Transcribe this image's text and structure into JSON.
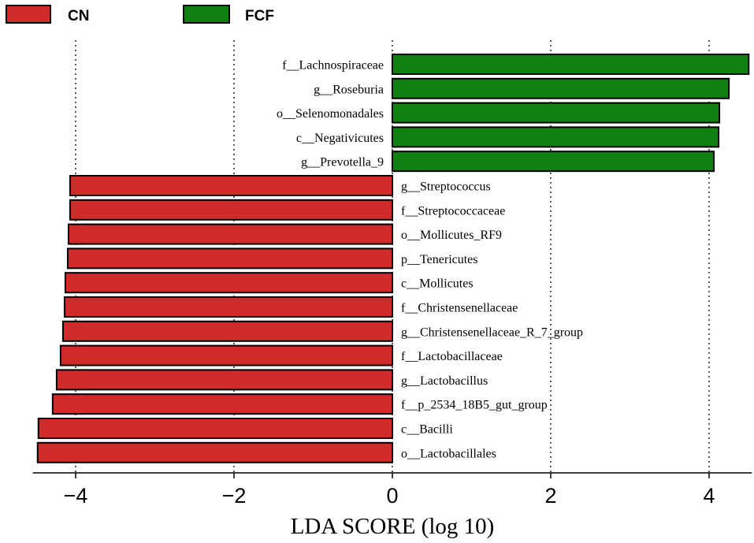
{
  "chart_data": {
    "type": "bar",
    "orientation": "horizontal",
    "xlabel": "LDA SCORE (log 10)",
    "xlim": [
      -4.5,
      4.5
    ],
    "xticks": [
      -4,
      -2,
      0,
      2,
      4
    ],
    "xtick_labels": [
      "−4",
      "−2",
      "0",
      "2",
      "4"
    ],
    "grid": "vertical-dotted",
    "legend_position": "top-left",
    "legend": [
      {
        "name": "CN",
        "color": "#d12a2b"
      },
      {
        "name": "FCF",
        "color": "#108010"
      }
    ],
    "bars": [
      {
        "label": "f__Lachnospiraceae",
        "value": 4.5,
        "group": "FCF"
      },
      {
        "label": "g__Roseburia",
        "value": 4.25,
        "group": "FCF"
      },
      {
        "label": "o__Selenomonadales",
        "value": 4.13,
        "group": "FCF"
      },
      {
        "label": "c__Negativicutes",
        "value": 4.12,
        "group": "FCF"
      },
      {
        "label": "g__Prevotella_9",
        "value": 4.06,
        "group": "FCF"
      },
      {
        "label": "g__Streptococcus",
        "value": -4.07,
        "group": "CN"
      },
      {
        "label": "f__Streptococcaceae",
        "value": -4.07,
        "group": "CN"
      },
      {
        "label": "o__Mollicutes_RF9",
        "value": -4.09,
        "group": "CN"
      },
      {
        "label": "p__Tenericutes",
        "value": -4.1,
        "group": "CN"
      },
      {
        "label": "c__Mollicutes",
        "value": -4.13,
        "group": "CN"
      },
      {
        "label": "f__Christensenellaceae",
        "value": -4.14,
        "group": "CN"
      },
      {
        "label": "g__Christensenellaceae_R_7_group",
        "value": -4.16,
        "group": "CN"
      },
      {
        "label": "f__Lactobacillaceae",
        "value": -4.19,
        "group": "CN"
      },
      {
        "label": "g__Lactobacillus",
        "value": -4.24,
        "group": "CN"
      },
      {
        "label": "f__p_2534_18B5_gut_group",
        "value": -4.29,
        "group": "CN"
      },
      {
        "label": "c__Bacilli",
        "value": -4.47,
        "group": "CN"
      },
      {
        "label": "o__Lactobacillales",
        "value": -4.48,
        "group": "CN"
      }
    ]
  }
}
